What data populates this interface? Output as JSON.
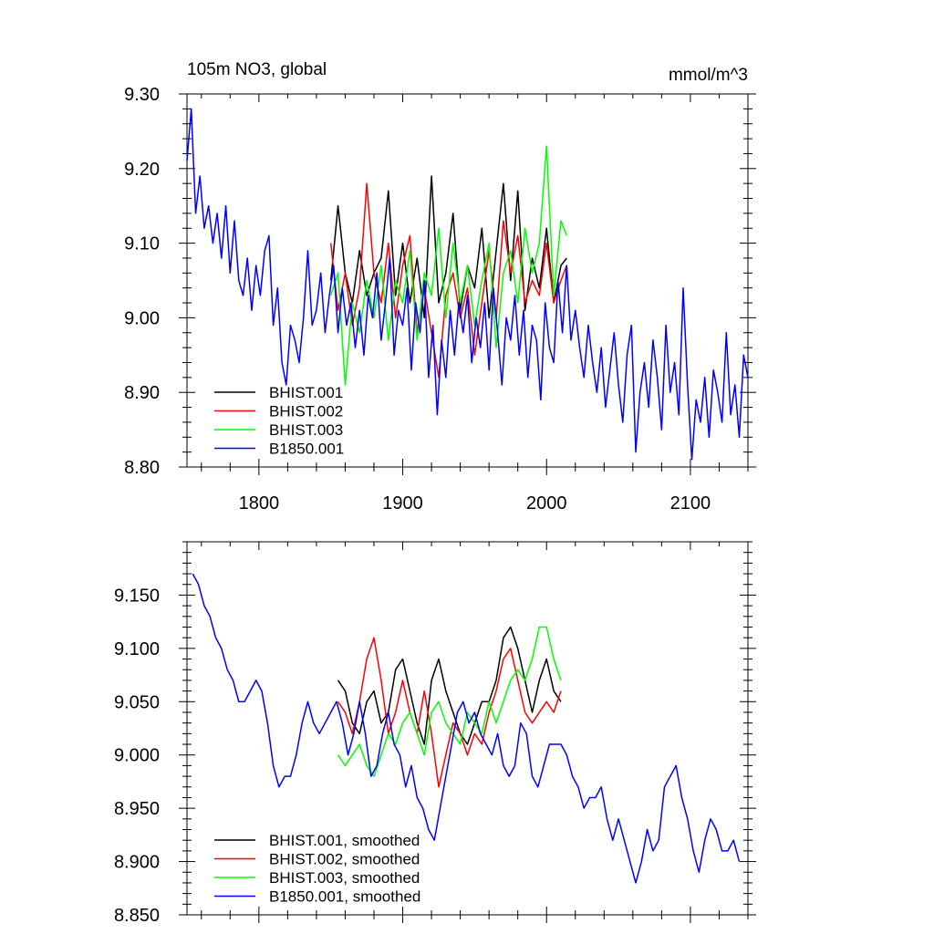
{
  "chart_data": [
    {
      "type": "line",
      "title": "105m NO3, global",
      "units": "mmol/m^3",
      "xlim": [
        1750,
        2140
      ],
      "ylim": [
        8.8,
        9.3
      ],
      "xticks": [
        1800,
        1900,
        2000,
        2100
      ],
      "yticks": [
        8.8,
        8.9,
        9.0,
        9.1,
        9.2,
        9.3
      ],
      "ytick_labels": [
        "8.80",
        "8.90",
        "9.00",
        "9.10",
        "9.20",
        "9.30"
      ],
      "xtick_labels": [
        "1800",
        "1900",
        "2000",
        "2100"
      ],
      "legend_position": "bottom-left",
      "series": [
        {
          "name": "BHIST.001",
          "color": "#000000",
          "x": [
            1850,
            1855,
            1860,
            1865,
            1870,
            1875,
            1880,
            1885,
            1890,
            1895,
            1900,
            1905,
            1910,
            1915,
            1920,
            1925,
            1930,
            1935,
            1940,
            1945,
            1950,
            1955,
            1960,
            1965,
            1970,
            1975,
            1980,
            1985,
            1990,
            1995,
            2000,
            2005,
            2010,
            2014
          ],
          "y": [
            9.05,
            9.15,
            9.06,
            9.02,
            9.09,
            9.03,
            9.06,
            9.08,
            9.17,
            9.03,
            9.1,
            9.02,
            9.08,
            9.0,
            9.19,
            9.02,
            9.06,
            9.14,
            9.01,
            9.07,
            9.04,
            9.12,
            9.0,
            9.09,
            9.18,
            9.05,
            9.17,
            9.01,
            9.08,
            9.04,
            9.12,
            9.02,
            9.07,
            9.08
          ]
        },
        {
          "name": "BHIST.002",
          "color": "#ff0000",
          "x": [
            1850,
            1855,
            1860,
            1865,
            1870,
            1875,
            1880,
            1885,
            1890,
            1895,
            1900,
            1905,
            1910,
            1915,
            1920,
            1925,
            1930,
            1935,
            1940,
            1945,
            1950,
            1955,
            1960,
            1965,
            1970,
            1975,
            1980,
            1985,
            1990,
            1995,
            2000,
            2005,
            2010,
            2014
          ],
          "y": [
            9.1,
            9.01,
            9.06,
            8.99,
            9.04,
            9.18,
            9.06,
            9.02,
            9.1,
            9.0,
            9.07,
            9.11,
            8.98,
            9.04,
            8.98,
            8.92,
            9.03,
            9.06,
            9.0,
            9.04,
            8.95,
            9.02,
            9.09,
            9.0,
            9.13,
            9.06,
            9.11,
            9.02,
            9.05,
            9.03,
            9.1,
            9.02,
            9.05,
            9.07
          ]
        },
        {
          "name": "BHIST.003",
          "color": "#00ff00",
          "x": [
            1850,
            1855,
            1860,
            1865,
            1870,
            1875,
            1880,
            1885,
            1890,
            1895,
            1900,
            1905,
            1910,
            1915,
            1920,
            1925,
            1930,
            1935,
            1940,
            1945,
            1950,
            1955,
            1960,
            1965,
            1970,
            1975,
            1980,
            1985,
            1990,
            1995,
            2000,
            2005,
            2010,
            2014
          ],
          "y": [
            9.03,
            9.06,
            8.91,
            9.02,
            8.98,
            9.05,
            9.0,
            9.07,
            8.97,
            9.05,
            9.02,
            9.09,
            8.97,
            9.06,
            9.03,
            9.12,
            9.0,
            9.1,
            9.02,
            9.07,
            8.99,
            9.05,
            9.1,
            8.96,
            9.06,
            9.09,
            9.02,
            9.12,
            9.06,
            9.1,
            9.23,
            9.03,
            9.13,
            9.11
          ]
        },
        {
          "name": "B1850.001",
          "color": "#0000ff",
          "x": [
            1750,
            1753,
            1756,
            1759,
            1762,
            1765,
            1768,
            1771,
            1774,
            1777,
            1780,
            1783,
            1786,
            1789,
            1792,
            1795,
            1798,
            1801,
            1804,
            1807,
            1810,
            1813,
            1816,
            1819,
            1822,
            1825,
            1828,
            1831,
            1834,
            1837,
            1840,
            1843,
            1846,
            1849,
            1852,
            1855,
            1858,
            1861,
            1864,
            1867,
            1870,
            1873,
            1876,
            1879,
            1882,
            1885,
            1888,
            1891,
            1894,
            1897,
            1900,
            1903,
            1906,
            1909,
            1912,
            1915,
            1918,
            1921,
            1924,
            1927,
            1930,
            1933,
            1936,
            1939,
            1942,
            1945,
            1948,
            1951,
            1954,
            1957,
            1960,
            1963,
            1966,
            1969,
            1972,
            1975,
            1978,
            1981,
            1984,
            1987,
            1990,
            1993,
            1996,
            1999,
            2002,
            2005,
            2008,
            2011,
            2014,
            2017,
            2020,
            2023,
            2026,
            2029,
            2032,
            2035,
            2038,
            2041,
            2044,
            2047,
            2050,
            2053,
            2056,
            2059,
            2062,
            2065,
            2068,
            2071,
            2074,
            2077,
            2080,
            2083,
            2086,
            2089,
            2092,
            2095,
            2098,
            2101,
            2104,
            2107,
            2110,
            2113,
            2116,
            2119,
            2122,
            2125,
            2128,
            2131,
            2134,
            2137,
            2140
          ],
          "y": [
            9.21,
            9.28,
            9.14,
            9.19,
            9.12,
            9.15,
            9.1,
            9.14,
            9.08,
            9.15,
            9.06,
            9.13,
            9.05,
            9.03,
            9.08,
            9.01,
            9.07,
            9.03,
            9.09,
            9.11,
            8.99,
            9.04,
            8.94,
            8.91,
            8.99,
            8.97,
            8.94,
            9.0,
            9.09,
            8.99,
            9.01,
            9.06,
            8.98,
            9.03,
            9.07,
            8.98,
            9.04,
            8.99,
            9.02,
            8.96,
            9.01,
            8.95,
            9.03,
            9.0,
            9.06,
            8.97,
            9.02,
            9.08,
            8.95,
            9.01,
            8.99,
            9.04,
            8.93,
            9.02,
            8.98,
            9.05,
            8.92,
            8.99,
            8.87,
            8.97,
            8.92,
            9.01,
            8.95,
            9.02,
            8.98,
            9.03,
            8.94,
            9.0,
            8.96,
            9.02,
            8.93,
            9.04,
            8.98,
            8.91,
            9.0,
            8.97,
            9.03,
            8.95,
            9.01,
            8.92,
            8.99,
            8.97,
            8.89,
            9.02,
            8.96,
            8.94,
            9.05,
            8.98,
            9.07,
            8.97,
            9.01,
            8.96,
            8.92,
            8.99,
            8.94,
            8.9,
            8.96,
            8.88,
            8.93,
            8.98,
            8.91,
            8.86,
            8.95,
            8.99,
            8.82,
            8.9,
            8.94,
            8.88,
            8.97,
            8.92,
            8.85,
            8.99,
            8.9,
            8.94,
            8.87,
            9.04,
            8.91,
            8.81,
            8.89,
            8.86,
            8.92,
            8.84,
            8.93,
            8.9,
            8.86,
            8.98,
            8.87,
            8.91,
            8.84,
            8.95,
            8.92
          ]
        }
      ]
    },
    {
      "type": "line",
      "title": "",
      "xlim": [
        1750,
        2140
      ],
      "ylim": [
        8.85,
        9.2
      ],
      "xticks": [
        1800,
        1900,
        2000,
        2100
      ],
      "yticks": [
        8.85,
        8.9,
        8.95,
        9.0,
        9.05,
        9.1,
        9.15
      ],
      "ytick_labels": [
        "8.850",
        "8.900",
        "8.950",
        "9.000",
        "9.050",
        "9.100",
        "9.150"
      ],
      "legend_position": "bottom-left",
      "series": [
        {
          "name": "BHIST.001, smoothed",
          "color": "#000000",
          "x": [
            1855,
            1860,
            1865,
            1870,
            1875,
            1880,
            1885,
            1890,
            1895,
            1900,
            1905,
            1910,
            1915,
            1920,
            1925,
            1930,
            1935,
            1940,
            1945,
            1950,
            1955,
            1960,
            1965,
            1970,
            1975,
            1980,
            1985,
            1990,
            1995,
            2000,
            2005,
            2010
          ],
          "y": [
            9.07,
            9.06,
            9.03,
            9.02,
            9.05,
            9.06,
            9.03,
            9.04,
            9.08,
            9.09,
            9.06,
            9.03,
            9.01,
            9.07,
            9.09,
            9.06,
            9.04,
            9.02,
            9.01,
            9.03,
            9.05,
            9.05,
            9.07,
            9.11,
            9.12,
            9.1,
            9.07,
            9.04,
            9.07,
            9.09,
            9.06,
            9.05
          ]
        },
        {
          "name": "BHIST.002, smoothed",
          "color": "#ff0000",
          "x": [
            1855,
            1860,
            1865,
            1870,
            1875,
            1880,
            1885,
            1890,
            1895,
            1900,
            1905,
            1910,
            1915,
            1920,
            1925,
            1930,
            1935,
            1940,
            1945,
            1950,
            1955,
            1960,
            1965,
            1970,
            1975,
            1980,
            1985,
            1990,
            1995,
            2000,
            2005,
            2010
          ],
          "y": [
            9.05,
            9.04,
            9.02,
            9.05,
            9.09,
            9.11,
            9.07,
            9.02,
            9.04,
            9.07,
            9.04,
            9.02,
            9.06,
            9.02,
            8.97,
            9.0,
            9.03,
            9.02,
            9.0,
            9.02,
            9.01,
            9.04,
            9.06,
            9.09,
            9.1,
            9.07,
            9.04,
            9.03,
            9.04,
            9.05,
            9.04,
            9.06
          ]
        },
        {
          "name": "BHIST.003, smoothed",
          "color": "#00ff00",
          "x": [
            1855,
            1860,
            1865,
            1870,
            1875,
            1880,
            1885,
            1890,
            1895,
            1900,
            1905,
            1910,
            1915,
            1920,
            1925,
            1930,
            1935,
            1940,
            1945,
            1950,
            1955,
            1960,
            1965,
            1970,
            1975,
            1980,
            1985,
            1990,
            1995,
            2000,
            2005,
            2010
          ],
          "y": [
            9.0,
            8.99,
            9.0,
            9.01,
            8.99,
            8.98,
            9.0,
            9.02,
            9.01,
            9.03,
            9.04,
            9.02,
            9.0,
            9.04,
            9.05,
            9.03,
            9.02,
            9.01,
            9.04,
            9.03,
            9.02,
            9.05,
            9.03,
            9.05,
            9.07,
            9.08,
            9.07,
            9.09,
            9.12,
            9.12,
            9.09,
            9.07
          ]
        },
        {
          "name": "B1850.001, smoothed",
          "color": "#0000ff",
          "x": [
            1754,
            1758,
            1762,
            1766,
            1770,
            1774,
            1778,
            1782,
            1786,
            1790,
            1794,
            1798,
            1802,
            1806,
            1810,
            1814,
            1818,
            1822,
            1826,
            1830,
            1834,
            1838,
            1842,
            1846,
            1850,
            1854,
            1858,
            1862,
            1866,
            1870,
            1874,
            1878,
            1882,
            1886,
            1890,
            1894,
            1898,
            1902,
            1906,
            1910,
            1914,
            1918,
            1922,
            1926,
            1930,
            1934,
            1938,
            1942,
            1946,
            1950,
            1954,
            1958,
            1962,
            1966,
            1970,
            1974,
            1978,
            1982,
            1986,
            1990,
            1994,
            1998,
            2002,
            2006,
            2010,
            2014,
            2018,
            2022,
            2026,
            2030,
            2034,
            2038,
            2042,
            2046,
            2050,
            2054,
            2058,
            2062,
            2066,
            2070,
            2074,
            2078,
            2082,
            2086,
            2090,
            2094,
            2098,
            2102,
            2106,
            2110,
            2114,
            2118,
            2122,
            2126,
            2130,
            2134
          ],
          "y": [
            9.17,
            9.16,
            9.14,
            9.13,
            9.11,
            9.1,
            9.08,
            9.07,
            9.05,
            9.05,
            9.06,
            9.07,
            9.06,
            9.03,
            8.99,
            8.97,
            8.98,
            8.98,
            9.0,
            9.03,
            9.05,
            9.03,
            9.02,
            9.03,
            9.04,
            9.05,
            9.03,
            9.0,
            9.02,
            9.05,
            9.02,
            8.98,
            8.99,
            9.02,
            9.04,
            9.01,
            9.0,
            8.97,
            8.99,
            8.96,
            8.95,
            8.93,
            8.92,
            8.95,
            8.98,
            9.01,
            9.04,
            9.05,
            9.03,
            9.04,
            9.02,
            9.01,
            9.0,
            9.02,
            8.99,
            8.98,
            8.99,
            9.03,
            9.02,
            8.98,
            8.97,
            8.99,
            9.01,
            9.01,
            9.01,
            9.0,
            8.98,
            8.97,
            8.95,
            8.96,
            8.96,
            8.97,
            8.94,
            8.92,
            8.94,
            8.92,
            8.9,
            8.88,
            8.9,
            8.93,
            8.91,
            8.92,
            8.97,
            8.98,
            8.99,
            8.96,
            8.94,
            8.91,
            8.89,
            8.92,
            8.94,
            8.93,
            8.91,
            8.91,
            8.92,
            8.9
          ]
        }
      ]
    }
  ]
}
